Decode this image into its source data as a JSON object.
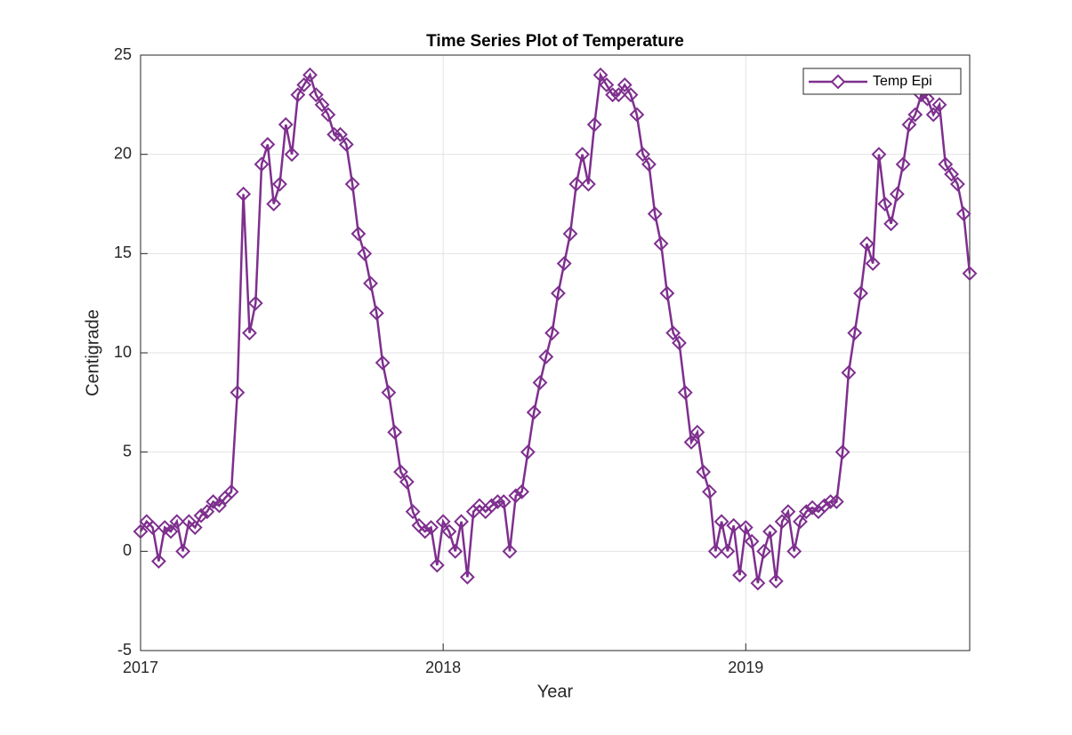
{
  "chart_data": {
    "type": "line",
    "title": "Time Series Plot of Temperature",
    "x_label": "Year",
    "y_label": "Centigrade",
    "x": [
      2017.0,
      2017.02,
      2017.04,
      2017.06,
      2017.08,
      2017.1,
      2017.12,
      2017.14,
      2017.16,
      2017.18,
      2017.2,
      2017.22,
      2017.24,
      2017.26,
      2017.28,
      2017.3,
      2017.32,
      2017.34,
      2017.36,
      2017.38,
      2017.4,
      2017.42,
      2017.44,
      2017.46,
      2017.48,
      2017.5,
      2017.52,
      2017.54,
      2017.56,
      2017.58,
      2017.6,
      2017.62,
      2017.64,
      2017.66,
      2017.68,
      2017.7,
      2017.72,
      2017.74,
      2017.76,
      2017.78,
      2017.8,
      2017.82,
      2017.84,
      2017.86,
      2017.88,
      2017.9,
      2017.92,
      2017.94,
      2017.96,
      2017.98,
      2018.0,
      2018.02,
      2018.04,
      2018.06,
      2018.08,
      2018.1,
      2018.12,
      2018.14,
      2018.16,
      2018.18,
      2018.2,
      2018.22,
      2018.24,
      2018.26,
      2018.28,
      2018.3,
      2018.32,
      2018.34,
      2018.36,
      2018.38,
      2018.4,
      2018.42,
      2018.44,
      2018.46,
      2018.48,
      2018.5,
      2018.52,
      2018.54,
      2018.56,
      2018.58,
      2018.6,
      2018.62,
      2018.64,
      2018.66,
      2018.68,
      2018.7,
      2018.72,
      2018.74,
      2018.76,
      2018.78,
      2018.8,
      2018.82,
      2018.84,
      2018.86,
      2018.88,
      2018.9,
      2018.92,
      2018.94,
      2018.96,
      2018.98,
      2019.0,
      2019.02,
      2019.04,
      2019.06,
      2019.08,
      2019.1,
      2019.12,
      2019.14,
      2019.16,
      2019.18,
      2019.2,
      2019.22,
      2019.24,
      2019.26,
      2019.28,
      2019.3,
      2019.32,
      2019.34,
      2019.36,
      2019.38,
      2019.4,
      2019.42,
      2019.44,
      2019.46,
      2019.48,
      2019.5,
      2019.52,
      2019.54,
      2019.56,
      2019.58,
      2019.6,
      2019.62,
      2019.64,
      2019.66,
      2019.68,
      2019.7,
      2019.72,
      2019.74
    ],
    "series": [
      {
        "name": "Temp Epi",
        "color": "#7e2f8e",
        "values": [
          1.0,
          1.5,
          1.2,
          -0.5,
          1.2,
          1.0,
          1.5,
          0.0,
          1.5,
          1.2,
          1.8,
          2.0,
          2.5,
          2.3,
          2.7,
          3.0,
          8.0,
          18.0,
          11.0,
          12.5,
          19.5,
          20.5,
          17.5,
          18.5,
          21.5,
          20.0,
          23.0,
          23.5,
          24.0,
          23.0,
          22.5,
          22.0,
          21.0,
          21.0,
          20.5,
          18.5,
          16.0,
          15.0,
          13.5,
          12.0,
          9.5,
          8.0,
          6.0,
          4.0,
          3.5,
          2.0,
          1.3,
          1.0,
          1.2,
          -0.7,
          1.5,
          1.0,
          0.0,
          1.5,
          -1.3,
          2.0,
          2.3,
          2.0,
          2.3,
          2.5,
          2.5,
          0.0,
          2.8,
          3.0,
          5.0,
          7.0,
          8.5,
          9.8,
          11.0,
          13.0,
          14.5,
          16.0,
          18.5,
          20.0,
          18.5,
          21.5,
          24.0,
          23.5,
          23.0,
          23.0,
          23.5,
          23.0,
          22.0,
          20.0,
          19.5,
          17.0,
          15.5,
          13.0,
          11.0,
          10.5,
          8.0,
          5.5,
          6.0,
          4.0,
          3.0,
          0.0,
          1.5,
          0.0,
          1.3,
          -1.2,
          1.2,
          0.5,
          -1.6,
          0.0,
          1.0,
          -1.5,
          1.5,
          2.0,
          0.0,
          1.5,
          2.0,
          2.2,
          2.0,
          2.3,
          2.5,
          2.5,
          5.0,
          9.0,
          11.0,
          13.0,
          15.5,
          14.5,
          20.0,
          17.5,
          16.5,
          18.0,
          19.5,
          21.5,
          22.0,
          23.0,
          22.8,
          22.0,
          22.5,
          19.5,
          19.0,
          18.5,
          17.0,
          14.0
        ]
      }
    ],
    "xlim": [
      2017,
      2019.74
    ],
    "xticks": [
      2017,
      2018,
      2019
    ],
    "ylim": [
      -5,
      25
    ],
    "yticks": [
      -5,
      0,
      5,
      10,
      15,
      20,
      25
    ],
    "grid": true,
    "legend": "upper right"
  }
}
